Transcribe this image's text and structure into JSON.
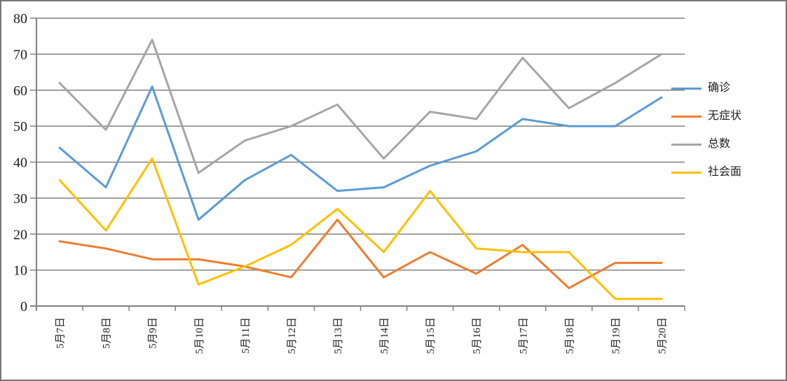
{
  "chart_data": {
    "type": "line",
    "title": "",
    "categories": [
      "5月7日",
      "5月8日",
      "5月9日",
      "5月10日",
      "5月11日",
      "5月12日",
      "5月13日",
      "5月14日",
      "5月15日",
      "5月16日",
      "5月17日",
      "5月18日",
      "5月19日",
      "5月20日"
    ],
    "series": [
      {
        "name": "确诊",
        "slug": "confirmed",
        "color": "#5B9BD5",
        "values": [
          44,
          33,
          61,
          24,
          35,
          42,
          32,
          33,
          39,
          43,
          52,
          50,
          50,
          58
        ]
      },
      {
        "name": "无症状",
        "slug": "asymptomatic",
        "color": "#ED7D31",
        "values": [
          18,
          16,
          13,
          13,
          11,
          8,
          24,
          8,
          15,
          9,
          17,
          5,
          12,
          12
        ]
      },
      {
        "name": "总数",
        "slug": "total",
        "color": "#A5A5A5",
        "values": [
          62,
          49,
          74,
          37,
          46,
          50,
          56,
          41,
          54,
          52,
          69,
          55,
          62,
          70
        ]
      },
      {
        "name": "社会面",
        "slug": "community",
        "color": "#FFC000",
        "values": [
          35,
          21,
          41,
          6,
          11,
          17,
          27,
          15,
          32,
          16,
          15,
          15,
          2,
          2
        ]
      }
    ],
    "ylim": [
      0,
      80
    ],
    "y_ticks": [
      0,
      10,
      20,
      30,
      40,
      50,
      60,
      70,
      80
    ],
    "grid": true,
    "legend_position": "right",
    "xlabel": "",
    "ylabel": ""
  },
  "style": {
    "grid_color": "#808080",
    "axis_color": "#808080",
    "text_color": "#202020",
    "background": "#ffffff",
    "border_color": "#767676"
  }
}
